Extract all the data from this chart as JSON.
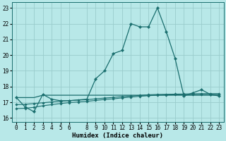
{
  "xlabel": "Humidex (Indice chaleur)",
  "bg_color": "#b8e8e8",
  "grid_color": "#99cccc",
  "line_color": "#1a6e6e",
  "xlim": [
    -0.5,
    23.5
  ],
  "ylim": [
    15.75,
    23.35
  ],
  "yticks": [
    16,
    17,
    18,
    19,
    20,
    21,
    22,
    23
  ],
  "xticks": [
    0,
    1,
    2,
    3,
    4,
    5,
    6,
    8,
    9,
    10,
    11,
    12,
    13,
    14,
    15,
    16,
    17,
    18,
    19,
    20,
    21,
    22,
    23
  ],
  "curve1_x": [
    0,
    1,
    2,
    3,
    4,
    5,
    6,
    8,
    9,
    10,
    11,
    12,
    13,
    14,
    15,
    16,
    17,
    18,
    19,
    20,
    21,
    22,
    23
  ],
  "curve1_y": [
    17.3,
    16.7,
    16.4,
    17.5,
    17.2,
    17.1,
    17.1,
    17.2,
    18.5,
    19.0,
    20.1,
    20.3,
    22.0,
    21.8,
    21.8,
    23.0,
    21.5,
    19.8,
    17.4,
    17.6,
    17.8,
    17.5,
    17.4
  ],
  "curve2_x": [
    0,
    1,
    2,
    3,
    4,
    5,
    6,
    7,
    8,
    9,
    10,
    11,
    12,
    13,
    14,
    15,
    16,
    17,
    18,
    19,
    20,
    21,
    22,
    23
  ],
  "curve2_y": [
    17.3,
    17.3,
    17.3,
    17.45,
    17.45,
    17.45,
    17.45,
    17.45,
    17.45,
    17.45,
    17.45,
    17.45,
    17.45,
    17.45,
    17.45,
    17.45,
    17.45,
    17.45,
    17.45,
    17.45,
    17.45,
    17.45,
    17.45,
    17.45
  ],
  "curve3_x": [
    0,
    1,
    2,
    3,
    4,
    5,
    6,
    7,
    8,
    9,
    10,
    11,
    12,
    13,
    14,
    15,
    16,
    17,
    18,
    19,
    20,
    21,
    22,
    23
  ],
  "curve3_y": [
    16.6,
    16.62,
    16.68,
    16.78,
    16.85,
    16.92,
    16.98,
    17.02,
    17.06,
    17.12,
    17.18,
    17.22,
    17.28,
    17.33,
    17.38,
    17.42,
    17.45,
    17.47,
    17.48,
    17.48,
    17.49,
    17.5,
    17.5,
    17.5
  ],
  "curve4_x": [
    0,
    1,
    2,
    3,
    4,
    5,
    6,
    7,
    8,
    9,
    10,
    11,
    12,
    13,
    14,
    15,
    16,
    17,
    18,
    19,
    20,
    21,
    22,
    23
  ],
  "curve4_y": [
    16.85,
    16.87,
    16.92,
    16.97,
    17.02,
    17.07,
    17.11,
    17.14,
    17.17,
    17.22,
    17.27,
    17.31,
    17.36,
    17.4,
    17.44,
    17.48,
    17.5,
    17.51,
    17.52,
    17.53,
    17.54,
    17.55,
    17.55,
    17.55
  ]
}
